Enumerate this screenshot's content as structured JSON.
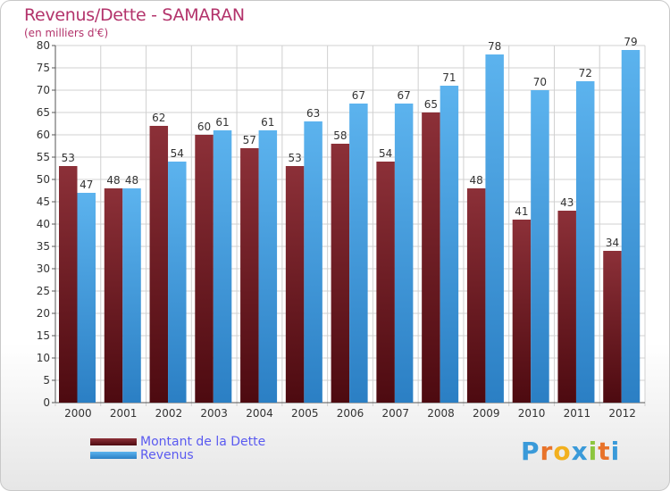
{
  "header": {
    "title": "Revenus/Dette - SAMARAN",
    "subtitle": "(en milliers d'€)"
  },
  "chart_data": {
    "type": "bar",
    "title": "Revenus/Dette - SAMARAN",
    "subtitle": "(en milliers d'€)",
    "xlabel": "",
    "ylabel": "",
    "ylim": [
      0,
      80
    ],
    "yticks": [
      0,
      5,
      10,
      15,
      20,
      25,
      30,
      35,
      40,
      45,
      50,
      55,
      60,
      65,
      70,
      75,
      80
    ],
    "grid": true,
    "legend_position": "bottom-left",
    "categories": [
      "2000",
      "2001",
      "2002",
      "2003",
      "2004",
      "2005",
      "2006",
      "2007",
      "2008",
      "2009",
      "2010",
      "2011",
      "2012"
    ],
    "series": [
      {
        "name": "Montant de la Dette",
        "color": "#7a1f2a",
        "values": [
          53,
          48,
          62,
          60,
          57,
          53,
          58,
          54,
          65,
          48,
          41,
          43,
          34
        ]
      },
      {
        "name": "Revenus",
        "color": "#4da6e8",
        "values": [
          47,
          48,
          54,
          61,
          61,
          63,
          67,
          67,
          71,
          78,
          70,
          72,
          79
        ]
      }
    ]
  },
  "legend": {
    "items": [
      {
        "label": "Montant de la Dette",
        "color": "#7a1f2a"
      },
      {
        "label": "Revenus",
        "color": "#4da6e8"
      }
    ]
  },
  "brand": {
    "logo_letters": [
      "P",
      "r",
      "o",
      "x",
      "i",
      "t",
      "i"
    ],
    "logo_colors": [
      "#3a9ad9",
      "#e8732a",
      "#f2b01e",
      "#3a9ad9",
      "#8cc63f",
      "#e8732a",
      "#3a9ad9"
    ]
  }
}
